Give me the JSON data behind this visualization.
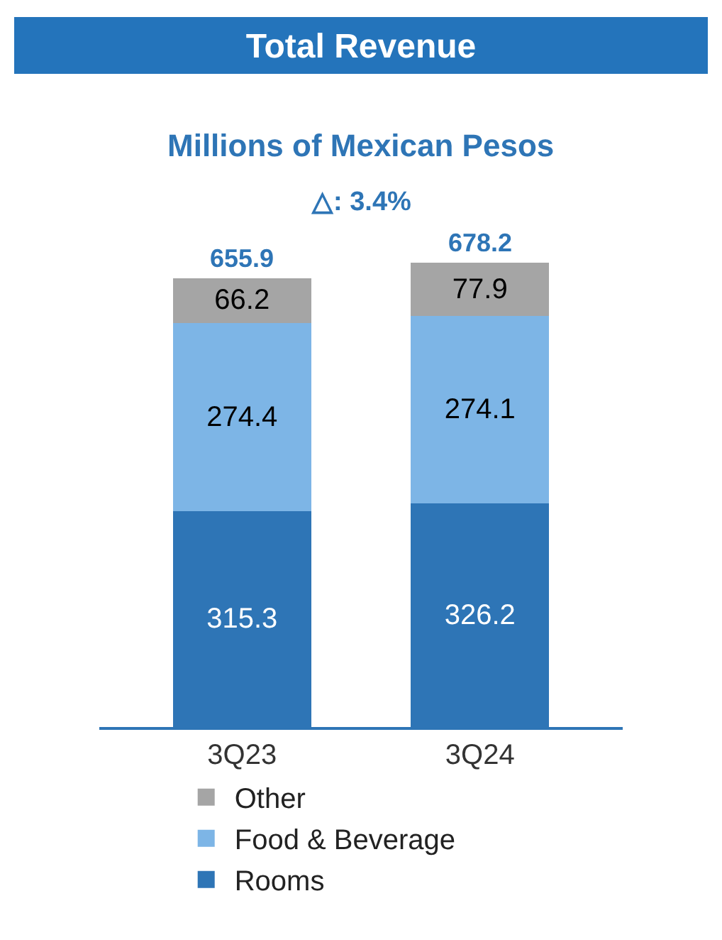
{
  "chart_data": {
    "type": "bar",
    "title": "Total Revenue",
    "subtitle": "Millions of Mexican Pesos",
    "annotations": [
      "△: 3.4%"
    ],
    "categories": [
      "3Q23",
      "3Q24"
    ],
    "stacked": true,
    "data_labels": true,
    "totals": [
      "655.9",
      "678.2"
    ],
    "legend": "bottom",
    "tick_labels": "x",
    "series": [
      {
        "name": "Rooms",
        "color": "#2e75b6",
        "values": [
          315.3,
          326.2
        ]
      },
      {
        "name": "Food & Beverage",
        "color": "#7db5e6",
        "values": [
          274.4,
          274.1
        ]
      },
      {
        "name": "Other",
        "color": "#a5a5a5",
        "values": [
          66.2,
          77.9
        ]
      }
    ]
  }
}
